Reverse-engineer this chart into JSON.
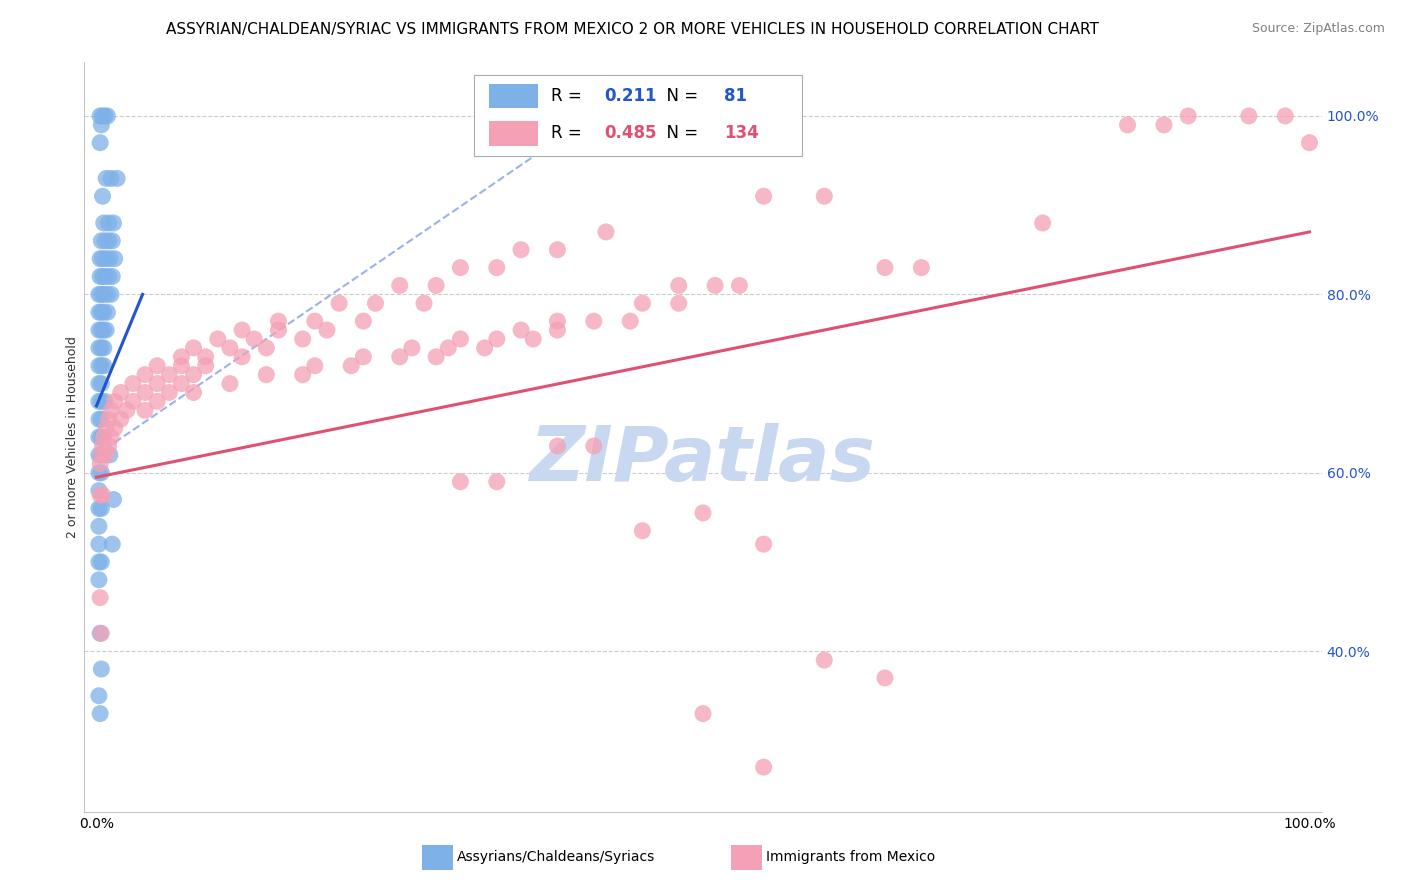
{
  "title": "ASSYRIAN/CHALDEAN/SYRIAC VS IMMIGRANTS FROM MEXICO 2 OR MORE VEHICLES IN HOUSEHOLD CORRELATION CHART",
  "source": "Source: ZipAtlas.com",
  "ylabel": "2 or more Vehicles in Household",
  "legend_blue_R": "0.211",
  "legend_blue_N": "81",
  "legend_pink_R": "0.485",
  "legend_pink_N": "134",
  "legend_blue_label": "Assyrians/Chaldeans/Syriacs",
  "legend_pink_label": "Immigrants from Mexico",
  "blue_color": "#7EB1E8",
  "pink_color": "#F4A0B5",
  "blue_line_color": "#2255CC",
  "pink_line_color": "#E05070",
  "blue_scatter": [
    [
      0.003,
      1.0
    ],
    [
      0.005,
      1.0
    ],
    [
      0.007,
      1.0
    ],
    [
      0.009,
      1.0
    ],
    [
      0.004,
      0.99
    ],
    [
      0.003,
      0.97
    ],
    [
      0.008,
      0.93
    ],
    [
      0.012,
      0.93
    ],
    [
      0.017,
      0.93
    ],
    [
      0.005,
      0.91
    ],
    [
      0.006,
      0.88
    ],
    [
      0.01,
      0.88
    ],
    [
      0.014,
      0.88
    ],
    [
      0.004,
      0.86
    ],
    [
      0.007,
      0.86
    ],
    [
      0.01,
      0.86
    ],
    [
      0.013,
      0.86
    ],
    [
      0.003,
      0.84
    ],
    [
      0.005,
      0.84
    ],
    [
      0.008,
      0.84
    ],
    [
      0.011,
      0.84
    ],
    [
      0.015,
      0.84
    ],
    [
      0.003,
      0.82
    ],
    [
      0.005,
      0.82
    ],
    [
      0.007,
      0.82
    ],
    [
      0.01,
      0.82
    ],
    [
      0.013,
      0.82
    ],
    [
      0.002,
      0.8
    ],
    [
      0.004,
      0.8
    ],
    [
      0.006,
      0.8
    ],
    [
      0.009,
      0.8
    ],
    [
      0.012,
      0.8
    ],
    [
      0.002,
      0.78
    ],
    [
      0.004,
      0.78
    ],
    [
      0.006,
      0.78
    ],
    [
      0.009,
      0.78
    ],
    [
      0.002,
      0.76
    ],
    [
      0.004,
      0.76
    ],
    [
      0.006,
      0.76
    ],
    [
      0.008,
      0.76
    ],
    [
      0.002,
      0.74
    ],
    [
      0.004,
      0.74
    ],
    [
      0.006,
      0.74
    ],
    [
      0.002,
      0.72
    ],
    [
      0.004,
      0.72
    ],
    [
      0.006,
      0.72
    ],
    [
      0.002,
      0.7
    ],
    [
      0.004,
      0.7
    ],
    [
      0.002,
      0.68
    ],
    [
      0.004,
      0.68
    ],
    [
      0.007,
      0.68
    ],
    [
      0.002,
      0.66
    ],
    [
      0.004,
      0.66
    ],
    [
      0.002,
      0.64
    ],
    [
      0.004,
      0.64
    ],
    [
      0.002,
      0.62
    ],
    [
      0.004,
      0.62
    ],
    [
      0.011,
      0.62
    ],
    [
      0.002,
      0.6
    ],
    [
      0.004,
      0.6
    ],
    [
      0.002,
      0.58
    ],
    [
      0.014,
      0.57
    ],
    [
      0.002,
      0.56
    ],
    [
      0.004,
      0.56
    ],
    [
      0.002,
      0.54
    ],
    [
      0.002,
      0.52
    ],
    [
      0.013,
      0.52
    ],
    [
      0.002,
      0.5
    ],
    [
      0.004,
      0.5
    ],
    [
      0.002,
      0.48
    ],
    [
      0.003,
      0.42
    ],
    [
      0.004,
      0.38
    ],
    [
      0.002,
      0.35
    ],
    [
      0.003,
      0.33
    ]
  ],
  "pink_scatter": [
    [
      0.9,
      1.0
    ],
    [
      0.95,
      1.0
    ],
    [
      0.98,
      1.0
    ],
    [
      0.85,
      0.99
    ],
    [
      0.88,
      0.99
    ],
    [
      1.0,
      0.97
    ],
    [
      0.55,
      0.91
    ],
    [
      0.6,
      0.91
    ],
    [
      0.78,
      0.88
    ],
    [
      0.42,
      0.87
    ],
    [
      0.35,
      0.85
    ],
    [
      0.38,
      0.85
    ],
    [
      0.3,
      0.83
    ],
    [
      0.33,
      0.83
    ],
    [
      0.65,
      0.83
    ],
    [
      0.68,
      0.83
    ],
    [
      0.25,
      0.81
    ],
    [
      0.28,
      0.81
    ],
    [
      0.48,
      0.81
    ],
    [
      0.51,
      0.81
    ],
    [
      0.53,
      0.81
    ],
    [
      0.2,
      0.79
    ],
    [
      0.23,
      0.79
    ],
    [
      0.27,
      0.79
    ],
    [
      0.45,
      0.79
    ],
    [
      0.48,
      0.79
    ],
    [
      0.15,
      0.77
    ],
    [
      0.18,
      0.77
    ],
    [
      0.22,
      0.77
    ],
    [
      0.38,
      0.77
    ],
    [
      0.41,
      0.77
    ],
    [
      0.44,
      0.77
    ],
    [
      0.12,
      0.76
    ],
    [
      0.15,
      0.76
    ],
    [
      0.19,
      0.76
    ],
    [
      0.35,
      0.76
    ],
    [
      0.38,
      0.76
    ],
    [
      0.1,
      0.75
    ],
    [
      0.13,
      0.75
    ],
    [
      0.17,
      0.75
    ],
    [
      0.3,
      0.75
    ],
    [
      0.33,
      0.75
    ],
    [
      0.36,
      0.75
    ],
    [
      0.08,
      0.74
    ],
    [
      0.11,
      0.74
    ],
    [
      0.14,
      0.74
    ],
    [
      0.26,
      0.74
    ],
    [
      0.29,
      0.74
    ],
    [
      0.32,
      0.74
    ],
    [
      0.07,
      0.73
    ],
    [
      0.09,
      0.73
    ],
    [
      0.12,
      0.73
    ],
    [
      0.22,
      0.73
    ],
    [
      0.25,
      0.73
    ],
    [
      0.28,
      0.73
    ],
    [
      0.05,
      0.72
    ],
    [
      0.07,
      0.72
    ],
    [
      0.09,
      0.72
    ],
    [
      0.18,
      0.72
    ],
    [
      0.21,
      0.72
    ],
    [
      0.04,
      0.71
    ],
    [
      0.06,
      0.71
    ],
    [
      0.08,
      0.71
    ],
    [
      0.14,
      0.71
    ],
    [
      0.17,
      0.71
    ],
    [
      0.03,
      0.7
    ],
    [
      0.05,
      0.7
    ],
    [
      0.07,
      0.7
    ],
    [
      0.11,
      0.7
    ],
    [
      0.02,
      0.69
    ],
    [
      0.04,
      0.69
    ],
    [
      0.06,
      0.69
    ],
    [
      0.08,
      0.69
    ],
    [
      0.015,
      0.68
    ],
    [
      0.03,
      0.68
    ],
    [
      0.05,
      0.68
    ],
    [
      0.012,
      0.67
    ],
    [
      0.025,
      0.67
    ],
    [
      0.04,
      0.67
    ],
    [
      0.01,
      0.66
    ],
    [
      0.02,
      0.66
    ],
    [
      0.008,
      0.65
    ],
    [
      0.015,
      0.65
    ],
    [
      0.006,
      0.64
    ],
    [
      0.012,
      0.64
    ],
    [
      0.005,
      0.63
    ],
    [
      0.01,
      0.63
    ],
    [
      0.38,
      0.63
    ],
    [
      0.41,
      0.63
    ],
    [
      0.004,
      0.62
    ],
    [
      0.008,
      0.62
    ],
    [
      0.003,
      0.61
    ],
    [
      0.3,
      0.59
    ],
    [
      0.33,
      0.59
    ],
    [
      0.003,
      0.575
    ],
    [
      0.005,
      0.575
    ],
    [
      0.5,
      0.555
    ],
    [
      0.45,
      0.535
    ],
    [
      0.55,
      0.52
    ],
    [
      0.003,
      0.46
    ],
    [
      0.004,
      0.42
    ],
    [
      0.6,
      0.39
    ],
    [
      0.65,
      0.37
    ],
    [
      0.5,
      0.33
    ],
    [
      0.55,
      0.27
    ]
  ],
  "blue_line_x": [
    0.0,
    0.038
  ],
  "blue_line_y": [
    0.675,
    0.8
  ],
  "pink_line_x": [
    0.0,
    1.0
  ],
  "pink_line_y": [
    0.595,
    0.87
  ],
  "dashed_line_x": [
    0.0,
    0.42
  ],
  "dashed_line_y": [
    0.62,
    1.01
  ],
  "xlim": [
    -0.01,
    1.01
  ],
  "ylim": [
    0.22,
    1.06
  ],
  "ytick_vals": [
    0.4,
    0.6,
    0.8,
    1.0
  ],
  "ytick_labels": [
    "40.0%",
    "60.0%",
    "80.0%",
    "100.0%"
  ],
  "background_color": "#ffffff",
  "grid_color": "#cccccc",
  "title_fontsize": 11,
  "axis_fontsize": 10,
  "watermark_text": "ZIPatlas",
  "watermark_color": "#C8D8F0"
}
